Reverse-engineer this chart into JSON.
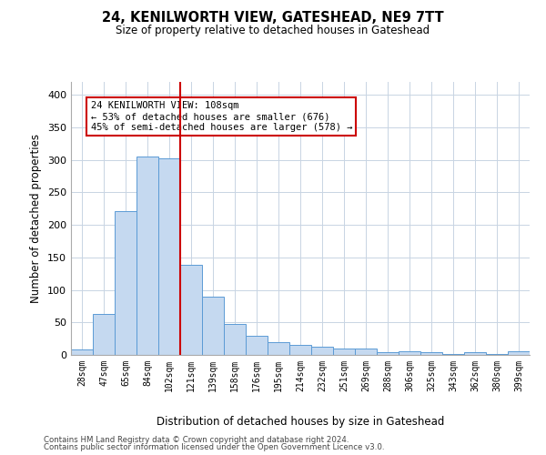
{
  "title": "24, KENILWORTH VIEW, GATESHEAD, NE9 7TT",
  "subtitle": "Size of property relative to detached houses in Gateshead",
  "xlabel": "Distribution of detached houses by size in Gateshead",
  "ylabel": "Number of detached properties",
  "bar_color": "#c5d9f0",
  "bar_edge_color": "#5b9bd5",
  "grid_color": "#c8d4e3",
  "background_color": "#ffffff",
  "categories": [
    "28sqm",
    "47sqm",
    "65sqm",
    "84sqm",
    "102sqm",
    "121sqm",
    "139sqm",
    "158sqm",
    "176sqm",
    "195sqm",
    "214sqm",
    "232sqm",
    "251sqm",
    "269sqm",
    "288sqm",
    "306sqm",
    "325sqm",
    "343sqm",
    "362sqm",
    "380sqm",
    "399sqm"
  ],
  "values": [
    8,
    63,
    221,
    305,
    302,
    138,
    90,
    47,
    30,
    19,
    15,
    12,
    10,
    10,
    4,
    5,
    4,
    2,
    4,
    2,
    5
  ],
  "vline_x_index": 4,
  "vline_color": "#cc0000",
  "annotation_text": "24 KENILWORTH VIEW: 108sqm\n← 53% of detached houses are smaller (676)\n45% of semi-detached houses are larger (578) →",
  "annotation_box_color": "#ffffff",
  "annotation_box_edge": "#cc0000",
  "ylim": [
    0,
    420
  ],
  "yticks": [
    0,
    50,
    100,
    150,
    200,
    250,
    300,
    350,
    400
  ],
  "footer1": "Contains HM Land Registry data © Crown copyright and database right 2024.",
  "footer2": "Contains public sector information licensed under the Open Government Licence v3.0."
}
